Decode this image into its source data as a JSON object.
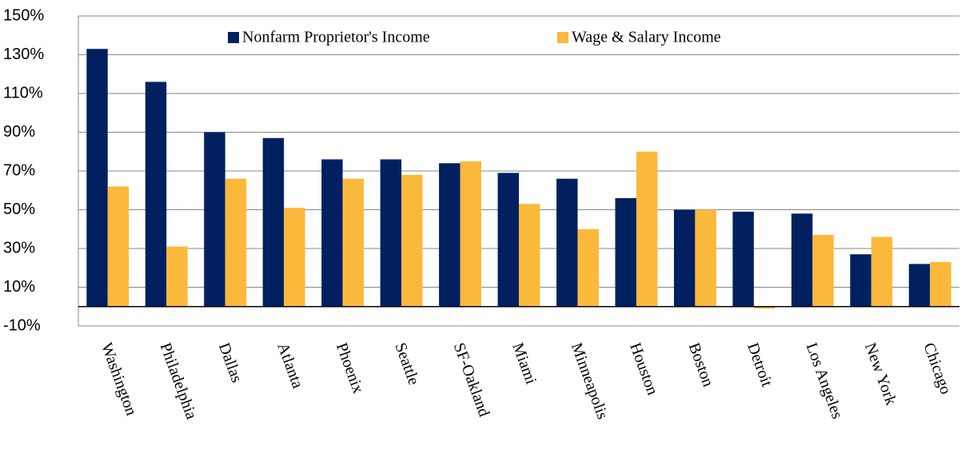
{
  "chart_data": {
    "type": "bar",
    "categories": [
      "Washington",
      "Philadelphia",
      "Dallas",
      "Atlanta",
      "Phoenix",
      "Seattle",
      "SF-Oakland",
      "Miami",
      "Minneapolis",
      "Houston",
      "Boston",
      "Detroit",
      "Los Angeles",
      "New York",
      "Chicago"
    ],
    "series": [
      {
        "name": "Nonfarm Proprietor's Income",
        "color": "#002060",
        "values": [
          133,
          116,
          90,
          87,
          76,
          76,
          74,
          69,
          66,
          56,
          50,
          49,
          48,
          27,
          22
        ]
      },
      {
        "name": "Wage & Salary Income",
        "color": "#fbb93b",
        "values": [
          62,
          31,
          66,
          51,
          66,
          68,
          75,
          53,
          40,
          80,
          50,
          -1,
          37,
          36,
          23
        ]
      }
    ],
    "ylim": [
      -10,
      150
    ],
    "yticks": [
      {
        "value": -10,
        "label": "-10%"
      },
      {
        "value": 10,
        "label": "10%"
      },
      {
        "value": 30,
        "label": "30%"
      },
      {
        "value": 50,
        "label": "50%"
      },
      {
        "value": 70,
        "label": "70%"
      },
      {
        "value": 90,
        "label": "90%"
      },
      {
        "value": 110,
        "label": "110%"
      },
      {
        "value": 130,
        "label": "130%"
      },
      {
        "value": 150,
        "label": "150%"
      }
    ],
    "grid": true
  }
}
